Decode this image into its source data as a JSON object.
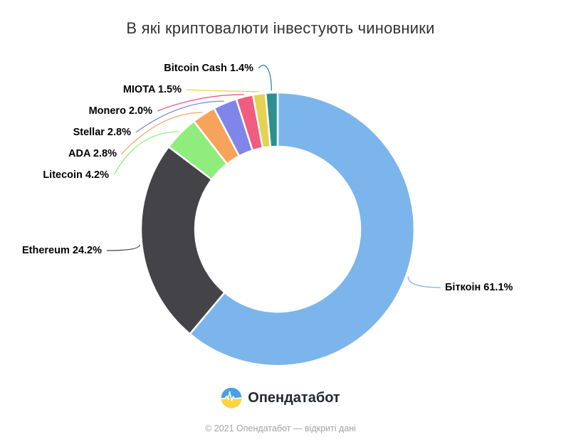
{
  "chart_data": {
    "type": "pie",
    "subtype": "donut",
    "title": "В які криптовалюти інвестують чиновники",
    "unit": "%",
    "direction": "clockwise",
    "start_angle_deg": 0,
    "inner_radius_ratio": 0.6,
    "legend": "none",
    "points": [
      {
        "name": "Біткоін",
        "value": 61.1,
        "color": "#7cb5ec",
        "label": "Біткоін 61.1%"
      },
      {
        "name": "Ethereum",
        "value": 24.2,
        "color": "#434348",
        "label": "Ethereum 24.2%"
      },
      {
        "name": "Litecoin",
        "value": 4.2,
        "color": "#90ed7d",
        "label": "Litecoin 4.2%"
      },
      {
        "name": "ADA",
        "value": 2.8,
        "color": "#f7a35c",
        "label": "ADA 2.8%"
      },
      {
        "name": "Stellar",
        "value": 2.8,
        "color": "#8085e9",
        "label": "Stellar 2.8%"
      },
      {
        "name": "Monero",
        "value": 2.0,
        "color": "#f15c80",
        "label": "Monero 2.0%"
      },
      {
        "name": "MIOTA",
        "value": 1.5,
        "color": "#e4d354",
        "label": "MIOTA 1.5%"
      },
      {
        "name": "Bitcoin Cash",
        "value": 1.4,
        "color": "#2b908f",
        "label": "Bitcoin Cash 1.4%"
      }
    ]
  },
  "footer": {
    "brand": "Опендатабот",
    "copyright": "© 2021 Опендатабот — відкриті дані"
  },
  "palette": {
    "title_color": "#333333",
    "label_color": "#000000",
    "copyright_color": "#a3a3a3",
    "logo_blue": "#4AA0E0",
    "logo_yellow": "#FFD43B"
  }
}
